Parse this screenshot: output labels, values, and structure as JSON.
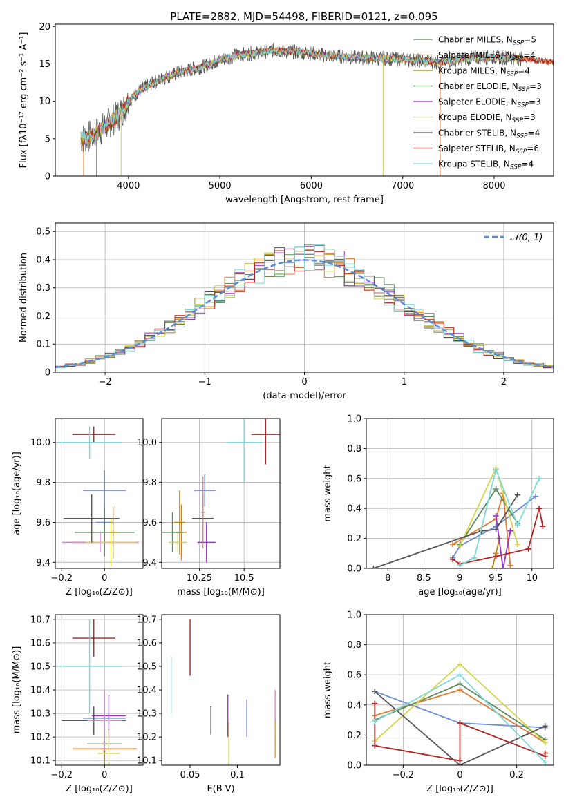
{
  "figure": {
    "title": "PLATE=2882, MJD=54498, FIBERID=0121, z=0.095"
  },
  "series_styles": [
    {
      "name": "Chabrier MILES",
      "nssp": "5",
      "color": "#5b7f5b"
    },
    {
      "name": "Salpeter MILES",
      "nssp": "4",
      "color": "#e07830"
    },
    {
      "name": "Kroupa MILES",
      "nssp": "4",
      "color": "#b8860b"
    },
    {
      "name": "Chabrier ELODIE",
      "nssp": "3",
      "color": "#5a8a5a"
    },
    {
      "name": "Salpeter ELODIE",
      "nssp": "3",
      "color": "#9932cc"
    },
    {
      "name": "Kroupa ELODIE",
      "nssp": "3",
      "color": "#d4d44a"
    },
    {
      "name": "Chabrier STELIB",
      "nssp": "4",
      "color": "#555555"
    },
    {
      "name": "Salpeter STELIB",
      "nssp": "6",
      "color": "#b22222"
    },
    {
      "name": "Kroupa STELIB",
      "nssp": "4",
      "color": "#7dd8d8"
    }
  ],
  "chart_data": [
    {
      "id": "spectrum",
      "type": "line",
      "title": "PLATE=2882, MJD=54498, FIBERID=0121, z=0.095",
      "xlabel": "wavelength [Angstrom, rest frame]",
      "ylabel": "Flux [fλ10⁻¹⁷ erg cm⁻² s⁻¹ A⁻¹]",
      "xlim": [
        3200,
        8650
      ],
      "ylim": [
        0,
        20.3
      ],
      "xticks": [
        4000,
        5000,
        6000,
        7000,
        8000
      ],
      "yticks": [
        0,
        5,
        10,
        15,
        20
      ],
      "legend_position": "right",
      "continuum": {
        "x": [
          3480,
          3600,
          3700,
          3800,
          3900,
          4000,
          4100,
          4250,
          4400,
          4600,
          4800,
          5000,
          5200,
          5400,
          5600,
          5800,
          6000,
          6200,
          6400,
          6600,
          6800,
          7000,
          7200,
          7400,
          7600,
          7800,
          8000,
          8200,
          8400,
          8650
        ],
        "y": [
          5.0,
          5.4,
          6.2,
          7.2,
          8.2,
          10.0,
          11.2,
          12.3,
          13.2,
          14.0,
          14.6,
          15.5,
          16.2,
          16.5,
          16.8,
          16.6,
          16.4,
          16.1,
          15.9,
          15.8,
          15.7,
          15.6,
          15.4,
          15.2,
          15.6,
          15.8,
          15.9,
          15.8,
          15.5,
          15.2
        ]
      },
      "features": [
        {
          "series": "Kroupa ELODIE",
          "x": 3920,
          "y_min": 0
        },
        {
          "series": "Kroupa ELODIE",
          "x": 6785,
          "y_min": 0
        },
        {
          "series": "Salpeter MILES",
          "x": 7410,
          "y_min": 0
        },
        {
          "series": "Salpeter MILES",
          "x": 3650,
          "y_min": 0
        },
        {
          "series": "Salpeter MILES",
          "x": 3510,
          "y_min": 0
        }
      ]
    },
    {
      "id": "residuals",
      "type": "histogram",
      "xlabel": "(data-model)/error",
      "ylabel": "Normed distribution",
      "xlim": [
        -2.5,
        2.5
      ],
      "ylim": [
        0,
        0.53
      ],
      "xticks": [
        -2,
        -1,
        0,
        1,
        2
      ],
      "yticks": [
        0.0,
        0.1,
        0.2,
        0.3,
        0.4,
        0.5
      ],
      "grid": true,
      "bin_width": 0.1,
      "reference": {
        "name": "𝒩(0, 1)",
        "mean": 0,
        "sigma": 1,
        "style": "dashed",
        "color": "#5b8bd6"
      },
      "legend_position": "top-right"
    },
    {
      "id": "age-vs-Z",
      "type": "errorbar",
      "xlabel": "Z [log₁₀(Z/Z⊙)]",
      "ylabel": "age  [log₁₀(age/yr)]",
      "xlim": [
        -0.23,
        0.18
      ],
      "ylim": [
        9.37,
        10.12
      ],
      "xticks": [
        -0.2,
        0.0
      ],
      "yticks": [
        9.4,
        9.6,
        9.8,
        10.0
      ],
      "grid": true,
      "points": [
        {
          "series": "Chabrier MILES",
          "x": 0.0,
          "xerr": 0.04,
          "y": 9.6,
          "yerr": 0.1,
          "color": "#6b8ad6"
        },
        {
          "series": "Salpeter MILES",
          "x": 0.0,
          "xerr": 0.1,
          "y": 9.76,
          "yerr": 0.1,
          "color": "#6b8ad6"
        },
        {
          "series": "Kroupa MILES",
          "x": 0.0,
          "xerr": 0.15,
          "y": 9.5,
          "yerr": 0.05,
          "color": "#e07830"
        },
        {
          "series": "Chabrier ELODIE",
          "x": 0.0,
          "xerr": 0.14,
          "y": 9.55,
          "yerr": 0.12,
          "color": "#5a8a5a"
        },
        {
          "series": "Salpeter ELODIE",
          "x": -0.02,
          "xerr": 0.18,
          "y": 9.5,
          "yerr": 0.05,
          "color": "#d87be0"
        },
        {
          "series": "Kroupa ELODIE",
          "x": 0.03,
          "xerr": 0.12,
          "y": 9.5,
          "yerr": 0.12,
          "color": "#d4d44a"
        },
        {
          "series": "Chabrier STELIB",
          "x": -0.06,
          "xerr": 0.13,
          "y": 9.62,
          "yerr": 0.12,
          "color": "#555555"
        },
        {
          "series": "Salpeter STELIB",
          "x": -0.05,
          "xerr": 0.1,
          "y": 10.04,
          "yerr": 0.04,
          "color": "#b22222"
        },
        {
          "series": "Kroupa STELIB",
          "x": -0.07,
          "xerr": 0.15,
          "y": 10.0,
          "yerr": 0.08,
          "color": "#7dd8d8"
        },
        {
          "series": "Kroupa MILES",
          "x": 0.04,
          "xerr": 0.02,
          "y": 9.55,
          "yerr": 0.13,
          "color": "#b8860b"
        }
      ]
    },
    {
      "id": "age-vs-mass",
      "type": "errorbar",
      "xlabel": "mass [log₁₀(M/M⊙)]",
      "xlim": [
        10.04,
        10.7
      ],
      "ylim": [
        9.37,
        10.12
      ],
      "xticks": [
        10.25,
        10.5
      ],
      "yticks": [
        9.4,
        9.6,
        9.8,
        10.0
      ],
      "grid": true,
      "points": [
        {
          "series": "Chabrier MILES",
          "x": 10.28,
          "xerr": 0.06,
          "y": 9.76,
          "yerr": 0.08,
          "color": "#6b8ad6"
        },
        {
          "series": "Salpeter MILES",
          "x": 10.15,
          "xerr": 0.03,
          "y": 9.55,
          "yerr": 0.14,
          "color": "#e07830"
        },
        {
          "series": "Kroupa MILES",
          "x": 10.14,
          "xerr": 0.03,
          "y": 9.6,
          "yerr": 0.16,
          "color": "#b8860b"
        },
        {
          "series": "Chabrier ELODIE",
          "x": 10.1,
          "xerr": 0.06,
          "y": 9.55,
          "yerr": 0.1,
          "color": "#5a8a5a"
        },
        {
          "series": "Salpeter ELODIE",
          "x": 10.29,
          "xerr": 0.05,
          "y": 9.5,
          "yerr": 0.1,
          "color": "#9932cc"
        },
        {
          "series": "Kroupa ELODIE",
          "x": 10.13,
          "xerr": 0.05,
          "y": 9.5,
          "yerr": 0.05,
          "color": "#d4d44a"
        },
        {
          "series": "Chabrier STELIB",
          "x": 10.27,
          "xerr": 0.06,
          "y": 9.62,
          "yerr": 0.12,
          "color": "#555555"
        },
        {
          "series": "Salpeter STELIB",
          "x": 10.62,
          "xerr": 0.08,
          "y": 10.04,
          "yerr": 0.15,
          "color": "#b22222"
        },
        {
          "series": "Kroupa STELIB",
          "x": 10.5,
          "xerr": 0.1,
          "y": 10.0,
          "yerr": 0.2,
          "color": "#7dd8d8"
        },
        {
          "series": "Salpeter MILES",
          "x": 10.27,
          "xerr": 0.01,
          "y": 9.65,
          "yerr": 0.18,
          "color": "#f08080"
        }
      ]
    },
    {
      "id": "mass-weight-vs-age",
      "type": "line",
      "xlabel": "age  [log₁₀(age/yr)]",
      "ylabel": "mass weight",
      "xlim": [
        7.7,
        10.3
      ],
      "ylim": [
        0,
        1.0
      ],
      "xticks": [
        8.0,
        8.5,
        9.0,
        9.5,
        10.0
      ],
      "yticks": [
        0.0,
        0.2,
        0.4,
        0.6,
        0.8,
        1.0
      ],
      "grid": true,
      "series": [
        {
          "name": "Chabrier MILES",
          "color": "#6b8ad6",
          "x": [
            8.9,
            9.0,
            9.5,
            10.05
          ],
          "y": [
            0.07,
            0.15,
            0.28,
            0.48
          ]
        },
        {
          "name": "Salpeter MILES",
          "color": "#e07830",
          "x": [
            8.9,
            9.5,
            9.6,
            9.7
          ],
          "y": [
            0.16,
            0.33,
            0.5,
            0.02
          ]
        },
        {
          "name": "Kroupa MILES",
          "color": "#b8860b",
          "x": [
            9.45,
            9.5,
            9.55
          ],
          "y": [
            0.0,
            0.1,
            0.2
          ]
        },
        {
          "name": "Chabrier ELODIE",
          "color": "#5a8a5a",
          "x": [
            9.0,
            9.5,
            9.8
          ],
          "y": [
            0.16,
            0.53,
            0.3
          ]
        },
        {
          "name": "Salpeter ELODIE",
          "color": "#9932cc",
          "x": [
            9.5,
            9.6,
            9.7
          ],
          "y": [
            0.35,
            0.0,
            0.25
          ]
        },
        {
          "name": "Kroupa ELODIE",
          "color": "#d4d44a",
          "x": [
            9.0,
            9.5,
            9.8
          ],
          "y": [
            0.15,
            0.67,
            0.16
          ]
        },
        {
          "name": "Chabrier STELIB",
          "color": "#555555",
          "x": [
            7.8,
            9.3,
            9.5,
            9.8
          ],
          "y": [
            0.0,
            0.25,
            0.26,
            0.49
          ]
        },
        {
          "name": "Salpeter STELIB",
          "color": "#b22222",
          "x": [
            8.9,
            9.0,
            9.5,
            9.95,
            10.1,
            10.15
          ],
          "y": [
            0.06,
            0.03,
            0.08,
            0.13,
            0.4,
            0.28
          ]
        },
        {
          "name": "Kroupa STELIB",
          "color": "#7dd8d8",
          "x": [
            9.0,
            9.2,
            9.5,
            9.8,
            10.1
          ],
          "y": [
            0.02,
            0.07,
            0.66,
            0.29,
            0.6
          ]
        }
      ]
    },
    {
      "id": "mass-vs-Z",
      "type": "errorbar",
      "xlabel": "Z [log₁₀(Z/Z⊙)]",
      "ylabel": "mass [log₁₀(M/M⊙)]",
      "xlim": [
        -0.23,
        0.18
      ],
      "ylim": [
        10.08,
        10.72
      ],
      "xticks": [
        -0.2,
        0.0
      ],
      "yticks": [
        10.1,
        10.2,
        10.3,
        10.4,
        10.5,
        10.6,
        10.7
      ],
      "grid": true,
      "points": [
        {
          "series": "Chabrier MILES",
          "x": 0.0,
          "xerr": 0.1,
          "y": 10.28,
          "yerr": 0.03,
          "color": "#6b8ad6"
        },
        {
          "series": "Salpeter MILES",
          "x": 0.0,
          "xerr": 0.15,
          "y": 10.15,
          "yerr": 0.05,
          "color": "#e07830"
        },
        {
          "series": "Kroupa MILES",
          "x": 0.0,
          "xerr": 0.01,
          "y": 10.14,
          "yerr": 0.08,
          "color": "#b8860b"
        },
        {
          "series": "Chabrier ELODIE",
          "x": 0.0,
          "xerr": 0.08,
          "y": 10.17,
          "yerr": 0.04,
          "color": "#5a8a5a"
        },
        {
          "series": "Salpeter ELODIE",
          "x": 0.02,
          "xerr": 0.08,
          "y": 10.29,
          "yerr": 0.09,
          "color": "#9932cc"
        },
        {
          "series": "Kroupa ELODIE",
          "x": 0.02,
          "xerr": 0.05,
          "y": 10.13,
          "yerr": 0.1,
          "color": "#d4d44a"
        },
        {
          "series": "Chabrier STELIB",
          "x": -0.05,
          "xerr": 0.15,
          "y": 10.27,
          "yerr": 0.06,
          "color": "#555555"
        },
        {
          "series": "Salpeter STELIB",
          "x": -0.05,
          "xerr": 0.1,
          "y": 10.62,
          "yerr": 0.08,
          "color": "#b22222"
        },
        {
          "series": "Kroupa STELIB",
          "x": -0.07,
          "xerr": 0.15,
          "y": 10.5,
          "yerr": 0.2,
          "color": "#7dd8d8"
        },
        {
          "series": "Salpeter MILES",
          "x": 0.0,
          "xerr": 0.08,
          "y": 10.27,
          "yerr": 0.13,
          "color": "#f080c0"
        }
      ]
    },
    {
      "id": "mass-vs-ebv",
      "type": "errorbar",
      "xlabel": "E(B-V)",
      "xlim": [
        0.02,
        0.145
      ],
      "ylim": [
        10.08,
        10.72
      ],
      "xticks": [
        0.05,
        0.1
      ],
      "yticks": [
        10.1,
        10.2,
        10.3,
        10.4,
        10.5,
        10.6,
        10.7
      ],
      "grid": false,
      "points": [
        {
          "series": "Kroupa STELIB",
          "x": 0.03,
          "y": 10.42,
          "yerr": 0.12,
          "color": "#7dd8d8"
        },
        {
          "series": "Salpeter STELIB",
          "x": 0.05,
          "y": 10.58,
          "yerr": 0.12,
          "color": "#b22222"
        },
        {
          "series": "Chabrier STELIB",
          "x": 0.072,
          "y": 10.27,
          "yerr": 0.06,
          "color": "#555555"
        },
        {
          "series": "Salpeter ELODIE",
          "x": 0.09,
          "y": 10.29,
          "yerr": 0.09,
          "color": "#9932cc"
        },
        {
          "series": "Kroupa ELODIE",
          "x": 0.091,
          "y": 10.16,
          "yerr": 0.1,
          "color": "#d4d44a"
        },
        {
          "series": "Chabrier MILES",
          "x": 0.11,
          "y": 10.28,
          "yerr": 0.08,
          "color": "#6b8ad6"
        },
        {
          "series": "Salpeter MILES",
          "x": 0.14,
          "y": 10.33,
          "yerr": 0.07,
          "color": "#f080c0"
        },
        {
          "series": "Kroupa MILES",
          "x": 0.14,
          "y": 10.19,
          "yerr": 0.08,
          "color": "#e0a030"
        }
      ]
    },
    {
      "id": "mass-weight-vs-Z",
      "type": "line",
      "xlabel": "Z [log₁₀(Z/Z⊙)]",
      "ylabel": "mass weight",
      "xlim": [
        -0.33,
        0.33
      ],
      "ylim": [
        0,
        1.0
      ],
      "xticks": [
        -0.2,
        0.0,
        0.2
      ],
      "yticks": [
        0.0,
        0.2,
        0.4,
        0.6,
        0.8,
        1.0
      ],
      "grid": true,
      "series": [
        {
          "name": "Chabrier MILES",
          "color": "#6b8ad6",
          "x": [
            -0.3,
            0.0,
            0.3
          ],
          "y": [
            0.49,
            0.28,
            0.25
          ]
        },
        {
          "name": "Salpeter MILES",
          "color": "#e07830",
          "x": [
            -0.3,
            0.0,
            0.3
          ],
          "y": [
            0.33,
            0.5,
            0.15
          ]
        },
        {
          "name": "Chabrier ELODIE",
          "color": "#5a8a5a",
          "x": [
            -0.3,
            0.0,
            0.3
          ],
          "y": [
            0.3,
            0.54,
            0.17
          ]
        },
        {
          "name": "Kroupa ELODIE",
          "color": "#d4d44a",
          "x": [
            -0.3,
            0.0,
            0.3
          ],
          "y": [
            0.16,
            0.67,
            0.15
          ]
        },
        {
          "name": "Chabrier STELIB",
          "color": "#555555",
          "x": [
            -0.3,
            0.0,
            0.3
          ],
          "y": [
            0.49,
            0.0,
            0.26
          ]
        },
        {
          "name": "Salpeter STELIB",
          "color": "#b22222",
          "x": [
            -0.3,
            -0.3,
            0.0,
            0.0,
            0.3,
            0.3
          ],
          "y": [
            0.41,
            0.13,
            0.03,
            0.28,
            0.06,
            0.08
          ]
        },
        {
          "name": "Kroupa STELIB",
          "color": "#7dd8d8",
          "x": [
            -0.3,
            0.0,
            0.3
          ],
          "y": [
            0.29,
            0.6,
            0.02
          ]
        }
      ]
    }
  ]
}
